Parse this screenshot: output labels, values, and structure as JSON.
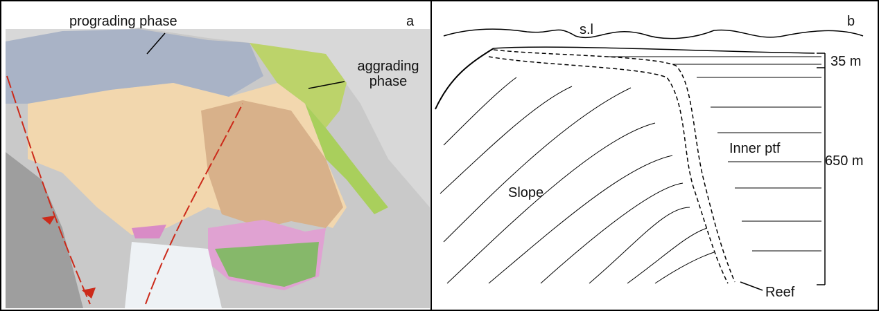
{
  "panel_a": {
    "letter": "a",
    "prograding_label": "prograding phase",
    "aggrading_label": "aggrading phase"
  },
  "panel_b": {
    "letter": "b",
    "sea_level": "s.l",
    "scale_top": "35 m",
    "scale_total": "650 m",
    "inner_platform": "Inner ptf",
    "slope": "Slope",
    "reef": "Reef"
  }
}
